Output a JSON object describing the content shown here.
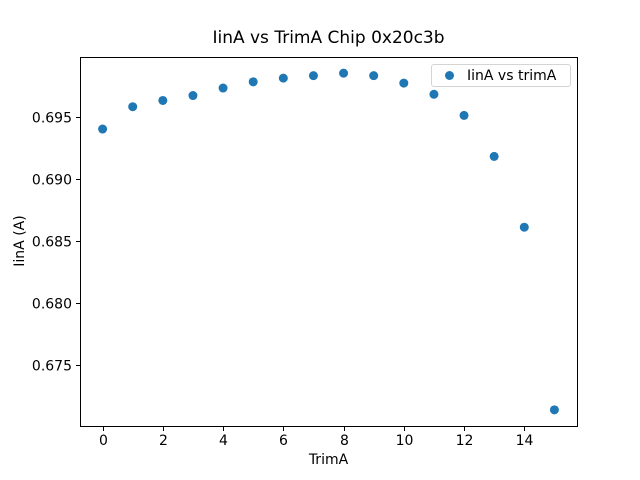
{
  "chart_data": {
    "type": "scatter",
    "title": "IinA vs TrimA Chip 0x20c3b",
    "xlabel": "TrimA",
    "ylabel": "IinA (A)",
    "series_name": "IinA vs trimA",
    "x": [
      0,
      1,
      2,
      3,
      4,
      5,
      6,
      7,
      8,
      9,
      10,
      11,
      12,
      13,
      14,
      15
    ],
    "y": [
      0.694,
      0.6958,
      0.6963,
      0.6967,
      0.6973,
      0.6978,
      0.6981,
      0.6983,
      0.6985,
      0.6983,
      0.6977,
      0.6968,
      0.6951,
      0.6918,
      0.6861,
      0.6714
    ],
    "xlim": [
      -0.75,
      15.75
    ],
    "ylim": [
      0.6701,
      0.6998
    ],
    "xticks": {
      "values": [
        0,
        2,
        4,
        6,
        8,
        10,
        12,
        14
      ],
      "labels": [
        "0",
        "2",
        "4",
        "6",
        "8",
        "10",
        "12",
        "14"
      ]
    },
    "yticks": {
      "values": [
        0.675,
        0.68,
        0.685,
        0.69,
        0.695
      ],
      "labels": [
        "0.675",
        "0.680",
        "0.685",
        "0.690",
        "0.695"
      ]
    },
    "marker_color": "#1f77b4",
    "spine_color": "#000000",
    "tick_label_color": "#000000",
    "grid": false,
    "legend_position": "upper right"
  }
}
